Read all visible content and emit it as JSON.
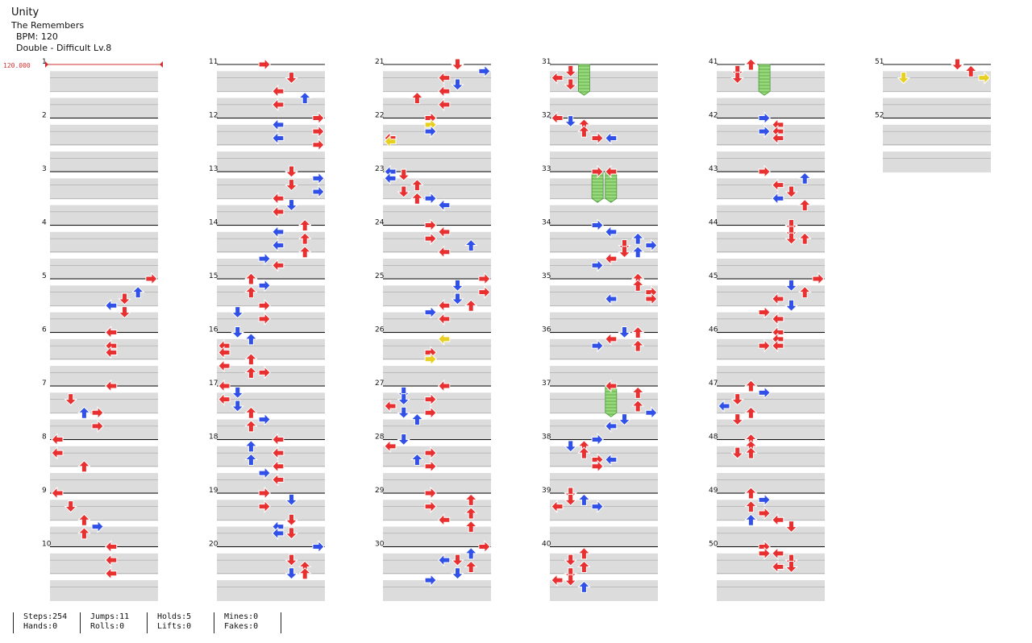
{
  "song": {
    "title": "Unity",
    "artist": "The Remembers",
    "bpm": "BPM: 120",
    "difficulty": "Double - Difficult Lv.8"
  },
  "bpm_marker": "120.000",
  "measure_numbers": [
    "1",
    "2",
    "3",
    "4",
    "5",
    "6",
    "7",
    "8",
    "9",
    "10",
    "11",
    "12",
    "13",
    "14",
    "15",
    "16",
    "17",
    "18",
    "19",
    "20",
    "21",
    "22",
    "23",
    "24",
    "25",
    "26",
    "27",
    "28",
    "29",
    "30",
    "31",
    "32",
    "33",
    "34",
    "35",
    "36",
    "37",
    "38",
    "39",
    "40",
    "41",
    "42",
    "43",
    "44",
    "45",
    "46",
    "47",
    "48",
    "49",
    "50",
    "51",
    "52"
  ],
  "colors": {
    "quarter": "#e83030",
    "eighth": "#3050e8",
    "sixteenth": "#e8d020",
    "hold": "#7cd060",
    "band": "#dcdcdc",
    "bpm": "#d03030"
  },
  "stats": [
    {
      "top": "Steps:254",
      "bottom": "Hands:0"
    },
    {
      "top": "Jumps:11",
      "bottom": "Rolls:0"
    },
    {
      "top": "Holds:5",
      "bottom": "Lifts:0"
    },
    {
      "top": "Mines:0",
      "bottom": "Fakes:0"
    }
  ],
  "chart_data": {
    "type": "step-chart",
    "lanes": [
      "L1",
      "D1",
      "U1",
      "R1",
      "L2",
      "D2",
      "U2",
      "R2"
    ],
    "measures_total": 52,
    "holds": [
      {
        "measure": 31,
        "beat": 0,
        "lane": 2,
        "length_beats": 2
      },
      {
        "measure": 33,
        "beat": 0,
        "lane": 3,
        "length_beats": 2
      },
      {
        "measure": 33,
        "beat": 0,
        "lane": 4,
        "length_beats": 2
      },
      {
        "measure": 37,
        "beat": 0,
        "lane": 4,
        "length_beats": 2
      },
      {
        "measure": 41,
        "beat": 0,
        "lane": 3,
        "length_beats": 2
      }
    ],
    "notes": [
      [
        5,
        0,
        7,
        "q"
      ],
      [
        5,
        1,
        6,
        "e"
      ],
      [
        5,
        1.5,
        5,
        "q"
      ],
      [
        5,
        2,
        4,
        "e"
      ],
      [
        5,
        2.5,
        5,
        "q"
      ],
      [
        6,
        0,
        4,
        "q"
      ],
      [
        6,
        1,
        4,
        "q"
      ],
      [
        6,
        1.5,
        4,
        "q"
      ],
      [
        7,
        0,
        4,
        "q"
      ],
      [
        7,
        1,
        1,
        "q"
      ],
      [
        7,
        2,
        3,
        "q"
      ],
      [
        7,
        2,
        2,
        "e"
      ],
      [
        7,
        3,
        3,
        "q"
      ],
      [
        8,
        0,
        0,
        "q"
      ],
      [
        8,
        1,
        0,
        "q"
      ],
      [
        8,
        2,
        2,
        "q"
      ],
      [
        9,
        0,
        0,
        "q"
      ],
      [
        9,
        1,
        1,
        "q"
      ],
      [
        9,
        2,
        2,
        "q"
      ],
      [
        9,
        2.5,
        3,
        "e"
      ],
      [
        9,
        3,
        2,
        "q"
      ],
      [
        10,
        0,
        4,
        "q"
      ],
      [
        10,
        1,
        4,
        "q"
      ],
      [
        10,
        2,
        4,
        "q"
      ],
      [
        11,
        0,
        3,
        "q"
      ],
      [
        11,
        1,
        5,
        "q"
      ],
      [
        11,
        2,
        4,
        "q"
      ],
      [
        11,
        2.5,
        6,
        "e"
      ],
      [
        11,
        3,
        4,
        "q"
      ],
      [
        12,
        0,
        7,
        "q"
      ],
      [
        12,
        0.5,
        4,
        "e"
      ],
      [
        12,
        1,
        7,
        "q"
      ],
      [
        12,
        1.5,
        4,
        "e"
      ],
      [
        12,
        2,
        7,
        "q"
      ],
      [
        13,
        0,
        5,
        "q"
      ],
      [
        13,
        0.5,
        7,
        "e"
      ],
      [
        13,
        1,
        5,
        "q"
      ],
      [
        13,
        1.5,
        7,
        "e"
      ],
      [
        13,
        2,
        4,
        "q"
      ],
      [
        13,
        2.5,
        5,
        "e"
      ],
      [
        13,
        3,
        4,
        "q"
      ],
      [
        14,
        0,
        6,
        "q"
      ],
      [
        14,
        0.5,
        4,
        "e"
      ],
      [
        14,
        1,
        6,
        "q"
      ],
      [
        14,
        1.5,
        4,
        "e"
      ],
      [
        14,
        2,
        6,
        "q"
      ],
      [
        14,
        2.5,
        3,
        "e"
      ],
      [
        14,
        3,
        4,
        "q"
      ],
      [
        15,
        0,
        2,
        "q"
      ],
      [
        15,
        0.5,
        3,
        "e"
      ],
      [
        15,
        1,
        2,
        "q"
      ],
      [
        15,
        2,
        3,
        "q"
      ],
      [
        15,
        2.5,
        1,
        "e"
      ],
      [
        15,
        3,
        3,
        "q"
      ],
      [
        16,
        0,
        1,
        "e"
      ],
      [
        16,
        0.5,
        2,
        "e"
      ],
      [
        16,
        1,
        0,
        "q"
      ],
      [
        16,
        1.5,
        0,
        "q"
      ],
      [
        16,
        2,
        2,
        "q"
      ],
      [
        16,
        2.5,
        0,
        "q"
      ],
      [
        16,
        3,
        2,
        "q"
      ],
      [
        16,
        3,
        3,
        "q"
      ],
      [
        17,
        0,
        0,
        "q"
      ],
      [
        17,
        0.5,
        1,
        "e"
      ],
      [
        17,
        1,
        0,
        "q"
      ],
      [
        17,
        1.5,
        1,
        "e"
      ],
      [
        17,
        2,
        2,
        "q"
      ],
      [
        17,
        2.5,
        3,
        "e"
      ],
      [
        17,
        3,
        2,
        "q"
      ],
      [
        18,
        0,
        4,
        "q"
      ],
      [
        18,
        0.5,
        2,
        "e"
      ],
      [
        18,
        1,
        4,
        "q"
      ],
      [
        18,
        1.5,
        2,
        "e"
      ],
      [
        18,
        2,
        4,
        "q"
      ],
      [
        18,
        2.5,
        3,
        "e"
      ],
      [
        18,
        3,
        4,
        "q"
      ],
      [
        19,
        0,
        3,
        "q"
      ],
      [
        19,
        0.5,
        5,
        "e"
      ],
      [
        19,
        1,
        3,
        "q"
      ],
      [
        19,
        2,
        5,
        "q"
      ],
      [
        19,
        2.5,
        4,
        "e"
      ],
      [
        19,
        3,
        5,
        "q"
      ],
      [
        19,
        3,
        4,
        "e"
      ],
      [
        20,
        0,
        7,
        "e"
      ],
      [
        20,
        1,
        5,
        "q"
      ],
      [
        20,
        1.5,
        6,
        "q"
      ],
      [
        20,
        2,
        5,
        "e"
      ],
      [
        20,
        2,
        6,
        "q"
      ],
      [
        21,
        0,
        5,
        "q"
      ],
      [
        21,
        0.5,
        7,
        "e"
      ],
      [
        21,
        1,
        4,
        "q"
      ],
      [
        21,
        1.5,
        5,
        "e"
      ],
      [
        21,
        2,
        4,
        "q"
      ],
      [
        21,
        2.5,
        2,
        "q"
      ],
      [
        21,
        3,
        4,
        "q"
      ],
      [
        22,
        0,
        3,
        "q"
      ],
      [
        22,
        0.5,
        3,
        "s"
      ],
      [
        22,
        1,
        3,
        "e"
      ],
      [
        22,
        1.5,
        0,
        "q"
      ],
      [
        22,
        1.75,
        0,
        "s"
      ],
      [
        23,
        0,
        0,
        "e"
      ],
      [
        23,
        0.25,
        1,
        "q"
      ],
      [
        23,
        0.5,
        0,
        "e"
      ],
      [
        23,
        1,
        2,
        "q"
      ],
      [
        23,
        1.5,
        1,
        "q"
      ],
      [
        23,
        2,
        2,
        "q"
      ],
      [
        23,
        2,
        3,
        "e"
      ],
      [
        23,
        2.5,
        4,
        "e"
      ],
      [
        24,
        0,
        3,
        "q"
      ],
      [
        24,
        0.5,
        4,
        "q"
      ],
      [
        24,
        1,
        3,
        "q"
      ],
      [
        24,
        1.5,
        6,
        "e"
      ],
      [
        24,
        2,
        4,
        "q"
      ],
      [
        25,
        0,
        7,
        "q"
      ],
      [
        25,
        0.5,
        5,
        "e"
      ],
      [
        25,
        1,
        7,
        "q"
      ],
      [
        25,
        1.5,
        5,
        "e"
      ],
      [
        25,
        2,
        4,
        "q"
      ],
      [
        25,
        2,
        6,
        "q"
      ],
      [
        25,
        2.5,
        3,
        "e"
      ],
      [
        25,
        3,
        4,
        "q"
      ],
      [
        26,
        0.5,
        4,
        "s"
      ],
      [
        26,
        1.5,
        3,
        "q"
      ],
      [
        26,
        2,
        3,
        "s"
      ],
      [
        27,
        0,
        4,
        "q"
      ],
      [
        27,
        0.5,
        1,
        "e"
      ],
      [
        27,
        1,
        1,
        "e"
      ],
      [
        27,
        1,
        3,
        "q"
      ],
      [
        27,
        1.5,
        0,
        "q"
      ],
      [
        27,
        2,
        1,
        "e"
      ],
      [
        27,
        2,
        3,
        "q"
      ],
      [
        27,
        2.5,
        2,
        "e"
      ],
      [
        28,
        0,
        1,
        "e"
      ],
      [
        28,
        0.5,
        0,
        "q"
      ],
      [
        28,
        1,
        3,
        "q"
      ],
      [
        28,
        1.5,
        2,
        "e"
      ],
      [
        28,
        2,
        3,
        "q"
      ],
      [
        29,
        0,
        3,
        "q"
      ],
      [
        29,
        0.5,
        6,
        "q"
      ],
      [
        29,
        1,
        3,
        "q"
      ],
      [
        29,
        1.5,
        6,
        "q"
      ],
      [
        29,
        2,
        4,
        "q"
      ],
      [
        29,
        2.5,
        6,
        "q"
      ],
      [
        30,
        0,
        7,
        "q"
      ],
      [
        30,
        0.5,
        6,
        "e"
      ],
      [
        30,
        1,
        4,
        "e"
      ],
      [
        30,
        1,
        5,
        "q"
      ],
      [
        30,
        1.5,
        6,
        "q"
      ],
      [
        30,
        2,
        5,
        "e"
      ],
      [
        30,
        2.5,
        3,
        "e"
      ],
      [
        31,
        0.5,
        1,
        "q"
      ],
      [
        31,
        1,
        0,
        "q"
      ],
      [
        31,
        1.5,
        1,
        "q"
      ],
      [
        32,
        0,
        0,
        "q"
      ],
      [
        32,
        0.25,
        1,
        "e"
      ],
      [
        32,
        0.5,
        2,
        "q"
      ],
      [
        32,
        1,
        2,
        "q"
      ],
      [
        32,
        1.5,
        3,
        "q"
      ],
      [
        32,
        1.5,
        4,
        "e"
      ],
      [
        33,
        0,
        3,
        "q"
      ],
      [
        33,
        0,
        4,
        "q"
      ],
      [
        34,
        0,
        3,
        "e"
      ],
      [
        34,
        0.5,
        4,
        "e"
      ],
      [
        34,
        1,
        6,
        "e"
      ],
      [
        34,
        1.5,
        7,
        "e"
      ],
      [
        34,
        1.5,
        5,
        "q"
      ],
      [
        34,
        2,
        5,
        "q"
      ],
      [
        34,
        2,
        6,
        "e"
      ],
      [
        34,
        2.5,
        4,
        "q"
      ],
      [
        34,
        3,
        3,
        "e"
      ],
      [
        35,
        0,
        6,
        "q"
      ],
      [
        35,
        0.5,
        6,
        "q"
      ],
      [
        35,
        1,
        7,
        "q"
      ],
      [
        35,
        1.5,
        7,
        "q"
      ],
      [
        35,
        1.5,
        4,
        "e"
      ],
      [
        36,
        0,
        5,
        "e"
      ],
      [
        36,
        0,
        6,
        "q"
      ],
      [
        36,
        0.5,
        4,
        "q"
      ],
      [
        36,
        1,
        6,
        "q"
      ],
      [
        36,
        1,
        3,
        "e"
      ],
      [
        37,
        0,
        4,
        "q"
      ],
      [
        37,
        0.5,
        6,
        "q"
      ],
      [
        37,
        1.5,
        6,
        "q"
      ],
      [
        37,
        2,
        7,
        "e"
      ],
      [
        37,
        2.5,
        5,
        "e"
      ],
      [
        37,
        3,
        4,
        "e"
      ],
      [
        38,
        0,
        3,
        "e"
      ],
      [
        38,
        0.5,
        2,
        "q"
      ],
      [
        38,
        0.5,
        1,
        "e"
      ],
      [
        38,
        1,
        2,
        "q"
      ],
      [
        38,
        1.5,
        3,
        "q"
      ],
      [
        38,
        1.5,
        4,
        "e"
      ],
      [
        38,
        2,
        3,
        "q"
      ],
      [
        39,
        0,
        1,
        "q"
      ],
      [
        39,
        0.5,
        1,
        "q"
      ],
      [
        39,
        0.5,
        2,
        "e"
      ],
      [
        39,
        1,
        0,
        "q"
      ],
      [
        39,
        1,
        0,
        "q"
      ],
      [
        39,
        1,
        3,
        "e"
      ],
      [
        40,
        0.5,
        2,
        "q"
      ],
      [
        40,
        1,
        1,
        "q"
      ],
      [
        40,
        1.5,
        2,
        "q"
      ],
      [
        40,
        2,
        1,
        "q"
      ],
      [
        40,
        2.5,
        1,
        "q"
      ],
      [
        40,
        2.5,
        0,
        "q"
      ],
      [
        40,
        3,
        2,
        "e"
      ],
      [
        41,
        0,
        2,
        "q"
      ],
      [
        41,
        0.5,
        1,
        "q"
      ],
      [
        41,
        1,
        1,
        "q"
      ],
      [
        42,
        0,
        3,
        "e"
      ],
      [
        42,
        0.5,
        4,
        "q"
      ],
      [
        42,
        1,
        3,
        "e"
      ],
      [
        42,
        1,
        4,
        "q"
      ],
      [
        42,
        1.5,
        4,
        "q"
      ],
      [
        43,
        0,
        3,
        "q"
      ],
      [
        43,
        0.5,
        6,
        "e"
      ],
      [
        43,
        1,
        4,
        "q"
      ],
      [
        43,
        1.5,
        5,
        "q"
      ],
      [
        43,
        2,
        4,
        "e"
      ],
      [
        43,
        2.5,
        6,
        "q"
      ],
      [
        44,
        0,
        5,
        "q"
      ],
      [
        44,
        0.5,
        5,
        "q"
      ],
      [
        44,
        1,
        5,
        "q"
      ],
      [
        44,
        1,
        6,
        "q"
      ],
      [
        45,
        0,
        7,
        "q"
      ],
      [
        45,
        0.5,
        5,
        "e"
      ],
      [
        45,
        1,
        6,
        "q"
      ],
      [
        45,
        1.5,
        4,
        "q"
      ],
      [
        45,
        2,
        5,
        "e"
      ],
      [
        45,
        2.5,
        3,
        "q"
      ],
      [
        45,
        3,
        4,
        "q"
      ],
      [
        46,
        0,
        4,
        "q"
      ],
      [
        46,
        0.5,
        4,
        "q"
      ],
      [
        46,
        1,
        3,
        "q"
      ],
      [
        46,
        1,
        4,
        "q"
      ],
      [
        47,
        0,
        2,
        "q"
      ],
      [
        47,
        0.5,
        3,
        "e"
      ],
      [
        47,
        1,
        1,
        "q"
      ],
      [
        47,
        1.5,
        0,
        "e"
      ],
      [
        47,
        2,
        2,
        "q"
      ],
      [
        47,
        2.5,
        1,
        "q"
      ],
      [
        48,
        0,
        2,
        "q"
      ],
      [
        48,
        0.5,
        2,
        "q"
      ],
      [
        48,
        1,
        1,
        "q"
      ],
      [
        48,
        1,
        2,
        "q"
      ],
      [
        49,
        0,
        2,
        "q"
      ],
      [
        49,
        0.5,
        3,
        "e"
      ],
      [
        49,
        1,
        2,
        "q"
      ],
      [
        49,
        1.5,
        3,
        "q"
      ],
      [
        49,
        2,
        2,
        "e"
      ],
      [
        49,
        2,
        4,
        "q"
      ],
      [
        49,
        2.5,
        5,
        "q"
      ],
      [
        50,
        0,
        3,
        "q"
      ],
      [
        50,
        0.5,
        4,
        "q"
      ],
      [
        50,
        0.5,
        3,
        "q"
      ],
      [
        50,
        1,
        5,
        "q"
      ],
      [
        50,
        1.5,
        4,
        "q"
      ],
      [
        50,
        1.5,
        5,
        "q"
      ],
      [
        51,
        0,
        5,
        "q"
      ],
      [
        51,
        0.5,
        6,
        "q"
      ],
      [
        51,
        1,
        7,
        "s"
      ],
      [
        51,
        1,
        1,
        "s"
      ]
    ]
  }
}
